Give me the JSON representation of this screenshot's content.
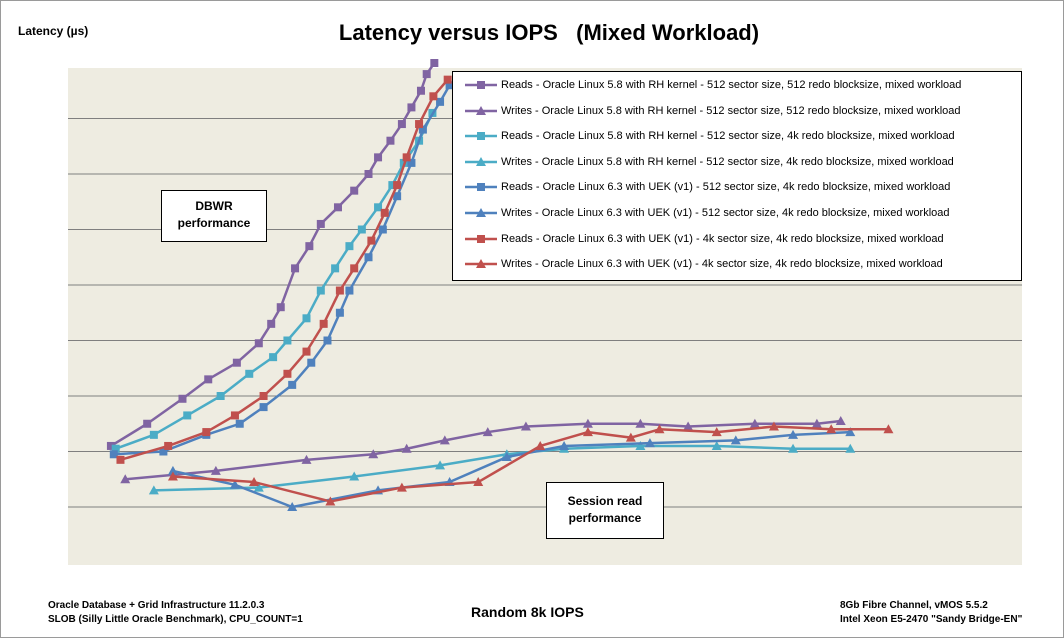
{
  "chart_data": {
    "type": "line",
    "title": "Latency versus IOPS   (Mixed Workload)",
    "xlabel": "Random 8k IOPS",
    "ylabel": "Latency (µs)",
    "grid": true,
    "legend_position": "top-right",
    "annotations": [
      {
        "lines": [
          "DBWR",
          "performance"
        ]
      },
      {
        "lines": [
          "Session read",
          "performance"
        ]
      }
    ],
    "footer_left": [
      "Oracle Database + Grid Infrastructure 11.2.0.3",
      "SLOB (Silly Little Oracle Benchmark), CPU_COUNT=1"
    ],
    "footer_right": [
      "8Gb Fibre Channel, vMOS 5.5.2",
      "Intel Xeon E5-2470 \"Sandy Bridge-EN\""
    ],
    "xlim": [
      0,
      1000
    ],
    "ylim": [
      0,
      10
    ],
    "series": [
      {
        "name": "Reads - Oracle Linux 5.8 with RH kernel - 512 sector size, 512 redo blocksize, mixed workload",
        "color": "#8064A2",
        "marker": "square",
        "x": [
          45,
          83,
          120,
          147,
          177,
          200,
          213,
          223,
          238,
          253,
          265,
          283,
          300,
          315,
          325,
          338,
          350,
          360,
          370,
          376,
          384
        ],
        "y": [
          1.1,
          1.5,
          1.95,
          2.3,
          2.6,
          2.95,
          3.3,
          3.6,
          4.3,
          4.7,
          5.1,
          5.4,
          5.7,
          6.0,
          6.3,
          6.6,
          6.9,
          7.2,
          7.5,
          7.8,
          8.0
        ]
      },
      {
        "name": "Writes - Oracle Linux 5.8 with RH kernel - 512 sector size, 512 redo blocksize, mixed workload",
        "color": "#8064A2",
        "marker": "triangle",
        "x": [
          60,
          155,
          250,
          320,
          355,
          395,
          440,
          480,
          545,
          600,
          650,
          720,
          785,
          810
        ],
        "y": [
          0.5,
          0.65,
          0.85,
          0.95,
          1.05,
          1.2,
          1.35,
          1.45,
          1.5,
          1.5,
          1.45,
          1.5,
          1.5,
          1.55
        ]
      },
      {
        "name": "Reads - Oracle Linux 5.8 with RH kernel - 512 sector size, 4k redo blocksize, mixed workload",
        "color": "#4BACC6",
        "marker": "square",
        "x": [
          50,
          90,
          125,
          160,
          190,
          215,
          230,
          250,
          265,
          280,
          295,
          308,
          325,
          340,
          352,
          368,
          382
        ],
        "y": [
          1.05,
          1.3,
          1.65,
          2.0,
          2.4,
          2.7,
          3.0,
          3.4,
          3.9,
          4.3,
          4.7,
          5.0,
          5.4,
          5.8,
          6.2,
          6.6,
          7.1
        ]
      },
      {
        "name": "Writes - Oracle Linux 5.8 with RH kernel - 512 sector size, 4k redo blocksize, mixed workload",
        "color": "#4BACC6",
        "marker": "triangle",
        "x": [
          90,
          200,
          300,
          390,
          460,
          520,
          600,
          680,
          760,
          820
        ],
        "y": [
          0.3,
          0.35,
          0.55,
          0.75,
          0.95,
          1.05,
          1.1,
          1.1,
          1.05,
          1.05
        ]
      },
      {
        "name": "Reads - Oracle Linux 6.3 with UEK (v1) - 512 sector size, 4k redo blocksize, mixed workload",
        "color": "#4F81BD",
        "marker": "square",
        "x": [
          48,
          100,
          145,
          180,
          205,
          235,
          255,
          272,
          285,
          295,
          315,
          330,
          345,
          360,
          372,
          390,
          400
        ],
        "y": [
          0.95,
          1.0,
          1.3,
          1.5,
          1.8,
          2.2,
          2.6,
          3.0,
          3.5,
          3.9,
          4.5,
          5.0,
          5.6,
          6.2,
          6.8,
          7.3,
          7.6
        ]
      },
      {
        "name": "Writes - Oracle Linux 6.3 with UEK (v1) - 512 sector size, 4k redo blocksize, mixed workload",
        "color": "#4F81BD",
        "marker": "triangle",
        "x": [
          110,
          175,
          235,
          325,
          400,
          460,
          520,
          610,
          700,
          760,
          820
        ],
        "y": [
          0.65,
          0.4,
          0.0,
          0.3,
          0.45,
          0.9,
          1.1,
          1.15,
          1.2,
          1.3,
          1.35
        ]
      },
      {
        "name": "Reads - Oracle Linux 6.3 with UEK (v1) - 4k sector size, 4k redo blocksize, mixed workload",
        "color": "#C0504D",
        "marker": "square",
        "x": [
          55,
          105,
          145,
          175,
          205,
          230,
          250,
          268,
          285,
          300,
          318,
          332,
          345,
          355,
          368,
          383,
          398
        ],
        "y": [
          0.85,
          1.1,
          1.35,
          1.65,
          2.0,
          2.4,
          2.8,
          3.3,
          3.9,
          4.3,
          4.8,
          5.3,
          5.8,
          6.3,
          6.9,
          7.4,
          7.7
        ]
      },
      {
        "name": "Writes - Oracle Linux 6.3 with UEK (v1) - 4k sector size, 4k redo blocksize, mixed workload",
        "color": "#C0504D",
        "marker": "triangle",
        "x": [
          110,
          195,
          275,
          350,
          430,
          495,
          545,
          590,
          620,
          680,
          740,
          800,
          860
        ],
        "y": [
          0.55,
          0.45,
          0.1,
          0.35,
          0.45,
          1.1,
          1.35,
          1.25,
          1.4,
          1.35,
          1.45,
          1.4,
          1.4
        ]
      }
    ]
  }
}
